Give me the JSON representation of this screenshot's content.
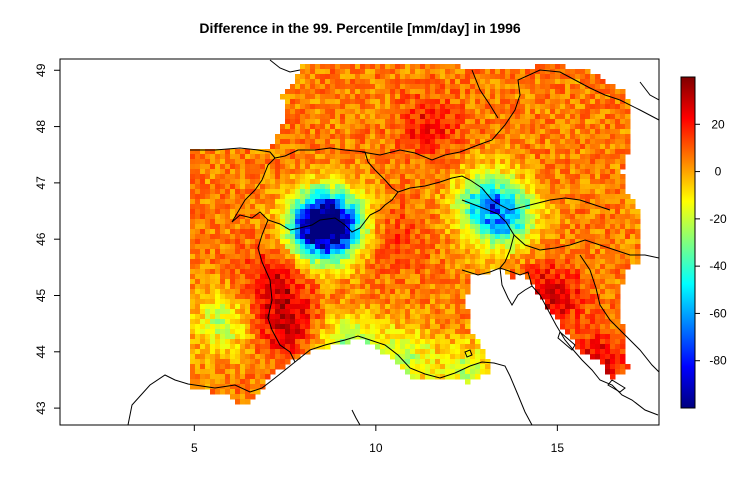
{
  "chart_data": {
    "type": "heatmap",
    "title": "Difference in the 99. Percentile [mm/day] in 1996",
    "xlabel": "",
    "ylabel": "",
    "xlim": [
      1.3,
      17.8
    ],
    "ylim": [
      42.7,
      49.2
    ],
    "x_ticks": [
      {
        "value": 5,
        "label": "5"
      },
      {
        "value": 10,
        "label": "10"
      },
      {
        "value": 15,
        "label": "15"
      }
    ],
    "y_ticks": [
      {
        "value": 43,
        "label": "43"
      },
      {
        "value": 44,
        "label": "44"
      },
      {
        "value": 45,
        "label": "45"
      },
      {
        "value": 46,
        "label": "46"
      },
      {
        "value": 47,
        "label": "47"
      },
      {
        "value": 48,
        "label": "48"
      },
      {
        "value": 49,
        "label": "49"
      }
    ],
    "colorbar": {
      "min": -100,
      "max": 40,
      "ticks": [
        {
          "value": 20,
          "label": "20"
        },
        {
          "value": 0,
          "label": "0"
        },
        {
          "value": -20,
          "label": "-20"
        },
        {
          "value": -40,
          "label": "-40"
        },
        {
          "value": -60,
          "label": "-60"
        },
        {
          "value": -80,
          "label": "-80"
        }
      ],
      "colors": [
        "#00007f",
        "#0000ff",
        "#007fff",
        "#00ffff",
        "#7fff7f",
        "#ffff00",
        "#ff7f00",
        "#ff0000",
        "#7f0000"
      ]
    },
    "typical_value": 5,
    "hotspots": [
      {
        "lon": 8.5,
        "lat": 46.2,
        "value": -85
      },
      {
        "lon": 8.8,
        "lat": 46.3,
        "value": -55
      },
      {
        "lon": 13.5,
        "lat": 46.4,
        "value": -50
      },
      {
        "lon": 13.0,
        "lat": 46.7,
        "value": -30
      },
      {
        "lon": 9.2,
        "lat": 44.1,
        "value": -25
      },
      {
        "lon": 10.8,
        "lat": 43.9,
        "value": -20
      },
      {
        "lon": 5.8,
        "lat": 44.5,
        "value": -20
      },
      {
        "lon": 12.6,
        "lat": 43.6,
        "value": -20
      },
      {
        "lon": 7.2,
        "lat": 45.3,
        "value": 25
      },
      {
        "lon": 7.5,
        "lat": 44.5,
        "value": 30
      },
      {
        "lon": 14.8,
        "lat": 45.0,
        "value": 28
      },
      {
        "lon": 16.2,
        "lat": 43.8,
        "value": 25
      },
      {
        "lon": 11.5,
        "lat": 48.0,
        "value": 20
      },
      {
        "lon": 10.5,
        "lat": 46.0,
        "value": 15
      }
    ]
  }
}
